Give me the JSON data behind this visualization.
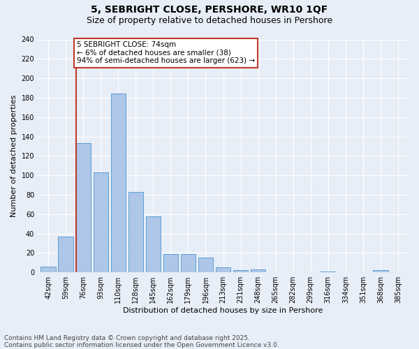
{
  "title": "5, SEBRIGHT CLOSE, PERSHORE, WR10 1QF",
  "subtitle": "Size of property relative to detached houses in Pershore",
  "xlabel": "Distribution of detached houses by size in Pershore",
  "ylabel": "Number of detached properties",
  "categories": [
    "42sqm",
    "59sqm",
    "76sqm",
    "93sqm",
    "110sqm",
    "128sqm",
    "145sqm",
    "162sqm",
    "179sqm",
    "196sqm",
    "213sqm",
    "231sqm",
    "248sqm",
    "265sqm",
    "282sqm",
    "299sqm",
    "316sqm",
    "334sqm",
    "351sqm",
    "368sqm",
    "385sqm"
  ],
  "values": [
    6,
    37,
    133,
    103,
    184,
    83,
    58,
    19,
    19,
    15,
    5,
    2,
    3,
    0,
    0,
    0,
    1,
    0,
    0,
    2,
    0
  ],
  "bar_color": "#aec6e8",
  "bar_edge_color": "#5a9fd4",
  "vline_color": "#c0392b",
  "annotation_text": "5 SEBRIGHT CLOSE: 74sqm\n← 6% of detached houses are smaller (38)\n94% of semi-detached houses are larger (623) →",
  "annotation_box_color": "#ffffff",
  "annotation_box_edge": "#c0392b",
  "ylim": [
    0,
    240
  ],
  "yticks": [
    0,
    20,
    40,
    60,
    80,
    100,
    120,
    140,
    160,
    180,
    200,
    220,
    240
  ],
  "bg_color": "#e8eef7",
  "footer_line1": "Contains HM Land Registry data © Crown copyright and database right 2025.",
  "footer_line2": "Contains public sector information licensed under the Open Government Licence v3.0.",
  "title_fontsize": 10,
  "subtitle_fontsize": 9,
  "axis_label_fontsize": 8,
  "tick_fontsize": 7,
  "annotation_fontsize": 7.5,
  "footer_fontsize": 6.5
}
